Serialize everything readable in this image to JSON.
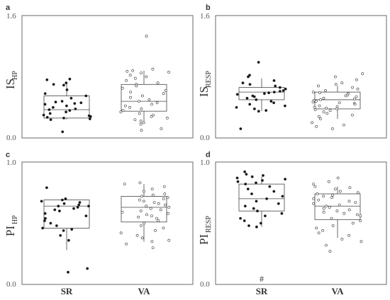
{
  "chart_data": [
    {
      "id": "a",
      "panel_label": "a",
      "type": "box-with-points",
      "ylabel_main": "IS",
      "ylabel_sub": "HP",
      "ylim": [
        0,
        1.6
      ],
      "yticks": [
        "0.0",
        "1.6"
      ],
      "categories": [
        "SR",
        "VA"
      ],
      "series": [
        {
          "category": "SR",
          "filled": true,
          "box": {
            "whisker_low": 0.24,
            "q1": 0.26,
            "median": 0.37,
            "q3": 0.55,
            "whisker_high": 0.73
          },
          "points": [
            0.72,
            0.77,
            0.76,
            0.7,
            0.69,
            0.63,
            0.58,
            0.55,
            0.52,
            0.48,
            0.47,
            0.46,
            0.45,
            0.44,
            0.42,
            0.4,
            0.38,
            0.37,
            0.36,
            0.34,
            0.32,
            0.3,
            0.29,
            0.28,
            0.27,
            0.26,
            0.25,
            0.24,
            0.08
          ]
        },
        {
          "category": "VA",
          "filled": false,
          "box": {
            "whisker_low": 0.22,
            "q1": 0.35,
            "median": 0.48,
            "q3": 0.7,
            "whisker_high": 0.88
          },
          "points": [
            1.33,
            0.9,
            0.88,
            0.87,
            0.86,
            0.85,
            0.82,
            0.8,
            0.78,
            0.75,
            0.72,
            0.7,
            0.68,
            0.65,
            0.62,
            0.6,
            0.58,
            0.55,
            0.53,
            0.5,
            0.48,
            0.46,
            0.44,
            0.42,
            0.4,
            0.38,
            0.36,
            0.34,
            0.32,
            0.3,
            0.28,
            0.26,
            0.24,
            0.22,
            0.2,
            0.18,
            0.12,
            0.1
          ]
        }
      ]
    },
    {
      "id": "b",
      "panel_label": "b",
      "type": "box-with-points",
      "ylabel_main": "IS",
      "ylabel_sub": "RESP",
      "ylim": [
        0,
        1.6
      ],
      "yticks": [
        "0.0",
        "1.6"
      ],
      "categories": [
        "SR",
        "VA"
      ],
      "series": [
        {
          "category": "SR",
          "filled": true,
          "box": {
            "whisker_low": 0.35,
            "q1": 0.5,
            "median": 0.6,
            "q3": 0.66,
            "whisker_high": 0.78
          },
          "points": [
            0.99,
            0.82,
            0.8,
            0.75,
            0.72,
            0.7,
            0.68,
            0.66,
            0.64,
            0.62,
            0.61,
            0.6,
            0.59,
            0.58,
            0.57,
            0.55,
            0.54,
            0.52,
            0.5,
            0.48,
            0.46,
            0.44,
            0.42,
            0.4,
            0.38,
            0.36,
            0.35,
            0.12
          ]
        },
        {
          "category": "VA",
          "filled": false,
          "box": {
            "whisker_low": 0.25,
            "q1": 0.38,
            "median": 0.5,
            "q3": 0.6,
            "whisker_high": 0.68
          },
          "points": [
            0.84,
            0.8,
            0.76,
            0.72,
            0.7,
            0.68,
            0.66,
            0.64,
            0.62,
            0.6,
            0.59,
            0.58,
            0.56,
            0.55,
            0.54,
            0.52,
            0.51,
            0.5,
            0.49,
            0.48,
            0.47,
            0.46,
            0.45,
            0.44,
            0.42,
            0.41,
            0.4,
            0.39,
            0.38,
            0.37,
            0.36,
            0.34,
            0.32,
            0.3,
            0.28,
            0.25,
            0.2,
            0.17,
            0.15,
            0.12
          ]
        }
      ]
    },
    {
      "id": "c",
      "panel_label": "c",
      "type": "box-with-points",
      "ylabel_main": "PI",
      "ylabel_sub": "HP",
      "ylim": [
        0,
        1.0
      ],
      "yticks": [
        "0.0",
        "1.0"
      ],
      "categories": [
        "SR",
        "VA"
      ],
      "series": [
        {
          "category": "SR",
          "filled": true,
          "box": {
            "whisker_low": 0.28,
            "q1": 0.46,
            "median": 0.64,
            "q3": 0.69,
            "whisker_high": 0.7
          },
          "points": [
            0.79,
            0.7,
            0.69,
            0.68,
            0.67,
            0.66,
            0.65,
            0.64,
            0.64,
            0.63,
            0.62,
            0.61,
            0.6,
            0.58,
            0.56,
            0.54,
            0.52,
            0.5,
            0.48,
            0.46,
            0.45,
            0.44,
            0.4,
            0.36,
            0.13,
            0.1
          ]
        },
        {
          "category": "VA",
          "filled": false,
          "box": {
            "whisker_low": 0.35,
            "q1": 0.51,
            "median": 0.63,
            "q3": 0.72,
            "whisker_high": 0.82
          },
          "points": [
            0.83,
            0.82,
            0.8,
            0.78,
            0.76,
            0.74,
            0.73,
            0.72,
            0.71,
            0.7,
            0.69,
            0.68,
            0.67,
            0.66,
            0.65,
            0.64,
            0.63,
            0.62,
            0.61,
            0.6,
            0.59,
            0.58,
            0.57,
            0.56,
            0.55,
            0.54,
            0.52,
            0.5,
            0.48,
            0.46,
            0.44,
            0.42,
            0.4,
            0.38,
            0.36,
            0.35,
            0.33,
            0.3
          ]
        }
      ]
    },
    {
      "id": "d",
      "panel_label": "d",
      "type": "box-with-points",
      "ylabel_main": "PI",
      "ylabel_sub": "RESP",
      "ylim": [
        0,
        1.0
      ],
      "yticks": [
        "0.0",
        "1.0"
      ],
      "categories": [
        "SR",
        "VA"
      ],
      "series": [
        {
          "category": "SR",
          "filled": true,
          "box": {
            "whisker_low": 0.47,
            "q1": 0.6,
            "median": 0.7,
            "q3": 0.82,
            "whisker_high": 0.88
          },
          "points": [
            0.92,
            0.9,
            0.89,
            0.88,
            0.87,
            0.86,
            0.85,
            0.84,
            0.83,
            0.82,
            0.8,
            0.78,
            0.76,
            0.74,
            0.72,
            0.7,
            0.68,
            0.66,
            0.64,
            0.62,
            0.6,
            0.58,
            0.56,
            0.54,
            0.52,
            0.5,
            0.48,
            0.47
          ]
        },
        {
          "category": "VA",
          "filled": false,
          "box": {
            "whisker_low": 0.38,
            "q1": 0.53,
            "median": 0.64,
            "q3": 0.74,
            "whisker_high": 0.8
          },
          "points": [
            0.87,
            0.84,
            0.82,
            0.8,
            0.79,
            0.78,
            0.76,
            0.75,
            0.74,
            0.73,
            0.72,
            0.71,
            0.7,
            0.69,
            0.68,
            0.67,
            0.66,
            0.65,
            0.64,
            0.63,
            0.62,
            0.61,
            0.6,
            0.59,
            0.58,
            0.57,
            0.56,
            0.54,
            0.52,
            0.5,
            0.48,
            0.46,
            0.44,
            0.42,
            0.4,
            0.37,
            0.35,
            0.32,
            0.27
          ]
        }
      ],
      "annotation": "#"
    }
  ],
  "xaxis_labels": [
    "SR",
    "VA"
  ]
}
